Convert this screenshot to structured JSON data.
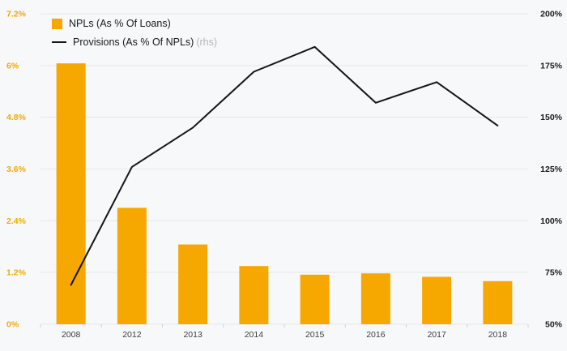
{
  "chart_data": {
    "type": "bar",
    "categories": [
      "2008",
      "2012",
      "2013",
      "2014",
      "2015",
      "2016",
      "2017",
      "2018"
    ],
    "series": [
      {
        "name": "NPLs (As % Of Loans)",
        "type": "bar",
        "axis": "left",
        "color": "#F7A800",
        "values": [
          6.05,
          2.7,
          1.85,
          1.35,
          1.15,
          1.18,
          1.1,
          1.0
        ]
      },
      {
        "name": "Provisions (As % Of NPLs)",
        "suffix": "(rhs)",
        "type": "line",
        "axis": "right",
        "color": "#141414",
        "values": [
          69,
          126,
          145,
          172,
          184,
          157,
          167,
          146
        ]
      }
    ],
    "left_axis": {
      "min": 0,
      "max": 7.2,
      "tick_values": [
        0,
        1.2,
        2.4,
        3.6,
        4.8,
        6,
        7.2
      ],
      "tick_labels": [
        "0%",
        "1.2%",
        "2.4%",
        "3.6%",
        "4.8%",
        "6%",
        "7.2%"
      ],
      "label_color": "#F7A800"
    },
    "right_axis": {
      "min": 50,
      "max": 200,
      "tick_values": [
        50,
        75,
        100,
        125,
        150,
        175,
        200
      ],
      "tick_labels": [
        "50%",
        "75%",
        "100%",
        "125%",
        "150%",
        "175%",
        "200%"
      ],
      "label_color": "#1a1a1a"
    },
    "grid": true,
    "grid_color": "#e6e8ea",
    "legend_position": "top-left",
    "title": "",
    "xlabel": "",
    "ylabel": ""
  }
}
